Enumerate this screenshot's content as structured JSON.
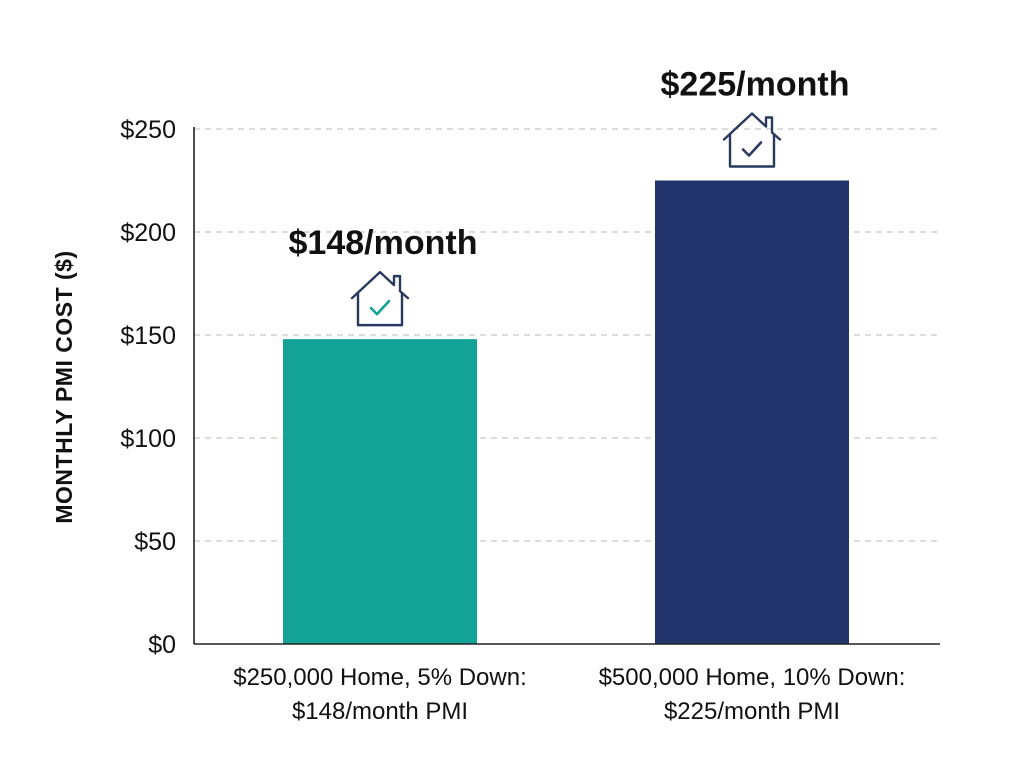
{
  "chart_data": {
    "type": "bar",
    "title": "",
    "xlabel": "",
    "ylabel": "MONTHLY PMI COST ($)",
    "ylim": [
      0,
      250
    ],
    "yticks": [
      {
        "value": 0,
        "label": "$0"
      },
      {
        "value": 50,
        "label": "$50"
      },
      {
        "value": 100,
        "label": "$100"
      },
      {
        "value": 150,
        "label": "$150"
      },
      {
        "value": 200,
        "label": "$200"
      },
      {
        "value": 250,
        "label": "$250"
      }
    ],
    "grid": true,
    "categories": [
      [
        "$250,000 Home, 5% Down:",
        "$148/month PMI"
      ],
      [
        "$500,000 Home, 10% Down:",
        "$225/month PMI"
      ]
    ],
    "values": [
      148,
      225
    ],
    "data_labels": [
      "$148/month",
      "$225/month"
    ],
    "bar_colors": [
      "#13a396",
      "#23336b"
    ],
    "annotations": [
      {
        "type": "icon",
        "name": "house-check-icon",
        "color": "#2a3a5f",
        "check_color": "#13a396"
      },
      {
        "type": "icon",
        "name": "house-check-icon",
        "color": "#2a3a5f",
        "check_color": "#2a3a5f"
      }
    ]
  }
}
